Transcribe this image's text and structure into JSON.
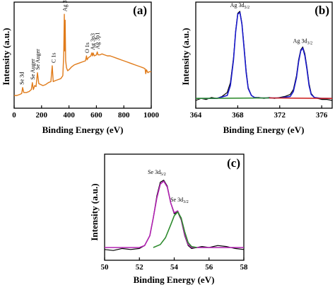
{
  "chart_data": [
    {
      "id": "a",
      "type": "line",
      "panel_label": "(a)",
      "xlabel": "Binding Energy (eV)",
      "ylabel": "Intensity (a.u.)",
      "xlim": [
        0,
        1000
      ],
      "ylim": [
        0,
        1
      ],
      "xticks": [
        0,
        200,
        400,
        600,
        800,
        1000
      ],
      "xtick_labels": [
        "0",
        "200",
        "400",
        "600",
        "800",
        "1000"
      ],
      "yticks_shown": false,
      "grid": false,
      "colors": {
        "line": "#e07b1a"
      },
      "series": [
        {
          "x": [
            0,
            20,
            40,
            55,
            62,
            70,
            90,
            110,
            125,
            133,
            140,
            150,
            160,
            170,
            180,
            195,
            210,
            230,
            250,
            268,
            278,
            285,
            300,
            320,
            340,
            355,
            362,
            366,
            368,
            372,
            376,
            382,
            390,
            400,
            420,
            440,
            460,
            480,
            500,
            520,
            528,
            532,
            540,
            560,
            566,
            572,
            576,
            585,
            600,
            606,
            612,
            625,
            640,
            660,
            680,
            700,
            720,
            740,
            760,
            780,
            800,
            820,
            840,
            860,
            880,
            900,
            920,
            940,
            955,
            960,
            965,
            975,
            985,
            1000
          ],
          "y": [
            0.1,
            0.1,
            0.11,
            0.12,
            0.18,
            0.13,
            0.13,
            0.14,
            0.16,
            0.23,
            0.16,
            0.2,
            0.19,
            0.33,
            0.22,
            0.21,
            0.2,
            0.21,
            0.23,
            0.24,
            0.4,
            0.24,
            0.25,
            0.26,
            0.27,
            0.3,
            0.52,
            0.92,
            0.55,
            0.86,
            0.45,
            0.38,
            0.35,
            0.36,
            0.39,
            0.41,
            0.42,
            0.43,
            0.44,
            0.45,
            0.5,
            0.46,
            0.48,
            0.5,
            0.53,
            0.5,
            0.53,
            0.5,
            0.51,
            0.54,
            0.51,
            0.51,
            0.52,
            0.51,
            0.5,
            0.5,
            0.49,
            0.48,
            0.47,
            0.46,
            0.45,
            0.44,
            0.43,
            0.42,
            0.41,
            0.4,
            0.39,
            0.38,
            0.37,
            0.32,
            0.36,
            0.33,
            0.34,
            0.34
          ]
        }
      ],
      "annotations": [
        {
          "text": "Se 3d",
          "x": 55,
          "y": 0.18
        },
        {
          "text": "Se Auger",
          "x": 133,
          "y": 0.23
        },
        {
          "text": "Se Auger",
          "x": 170,
          "y": 0.33
        },
        {
          "text": "C 1s",
          "x": 285,
          "y": 0.4
        },
        {
          "text": "Ag 3d",
          "x": 368,
          "y": 0.92
        },
        {
          "text": "O 1s",
          "x": 532,
          "y": 0.5
        },
        {
          "text": "Ag 3p3",
          "x": 572,
          "y": 0.53
        },
        {
          "text": "Ag 3p1",
          "x": 606,
          "y": 0.54
        }
      ]
    },
    {
      "id": "b",
      "type": "line",
      "panel_label": "(b)",
      "xlabel": "Binding Energy (eV)",
      "ylabel": "Intensity (a.u.)",
      "xlim": [
        364,
        377
      ],
      "ylim": [
        0,
        1
      ],
      "xticks": [
        364,
        368,
        372,
        376
      ],
      "xtick_labels": [
        "364",
        "368",
        "372",
        "376"
      ],
      "yticks_shown": false,
      "grid": false,
      "colors": {
        "raw": "#000000",
        "fit": "#1a1acc",
        "peak1": "#2e8b2e",
        "peak2": "#cc2222"
      },
      "series": [
        {
          "role": "raw",
          "x": [
            364,
            364.5,
            365,
            365.5,
            366,
            366.5,
            367,
            367.3,
            367.6,
            367.8,
            368,
            368.2,
            368.4,
            368.6,
            368.8,
            369.0,
            369.3,
            369.6,
            370,
            370.5,
            371,
            371.5,
            372,
            372.5,
            373,
            373.3,
            373.6,
            373.8,
            374,
            374.2,
            374.4,
            374.6,
            374.8,
            375.0,
            375.3,
            375.6,
            376,
            376.5,
            377
          ],
          "y": [
            0.05,
            0.07,
            0.06,
            0.08,
            0.07,
            0.09,
            0.13,
            0.23,
            0.48,
            0.75,
            0.93,
            0.95,
            0.83,
            0.6,
            0.35,
            0.18,
            0.1,
            0.08,
            0.08,
            0.07,
            0.08,
            0.07,
            0.08,
            0.09,
            0.11,
            0.16,
            0.3,
            0.46,
            0.56,
            0.59,
            0.52,
            0.38,
            0.22,
            0.12,
            0.08,
            0.07,
            0.06,
            0.06,
            0.05
          ]
        },
        {
          "role": "fit",
          "x": [
            364,
            366,
            367,
            367.3,
            367.6,
            367.8,
            368,
            368.2,
            368.4,
            368.6,
            368.8,
            369.0,
            369.3,
            369.6,
            370,
            372,
            373,
            373.3,
            373.6,
            373.8,
            374,
            374.2,
            374.4,
            374.6,
            374.8,
            375.0,
            375.3,
            376,
            377
          ],
          "y": [
            0.07,
            0.07,
            0.1,
            0.2,
            0.46,
            0.74,
            0.92,
            0.94,
            0.82,
            0.58,
            0.33,
            0.17,
            0.1,
            0.08,
            0.075,
            0.075,
            0.09,
            0.14,
            0.28,
            0.44,
            0.55,
            0.58,
            0.5,
            0.36,
            0.2,
            0.11,
            0.08,
            0.07,
            0.07
          ]
        },
        {
          "role": "baseline-left",
          "x": [
            364,
            371
          ],
          "y": [
            0.07,
            0.075
          ]
        },
        {
          "role": "baseline-right",
          "x": [
            371,
            377
          ],
          "y": [
            0.075,
            0.07
          ]
        }
      ],
      "annotations": [
        {
          "text": "Ag 3d",
          "sub": "5/2",
          "x": 368.2,
          "y": 0.95
        },
        {
          "text": "Ag 3d",
          "sub": "3/2",
          "x": 374.2,
          "y": 0.59
        }
      ]
    },
    {
      "id": "c",
      "type": "line",
      "panel_label": "(c)",
      "xlabel": "Binding Energy (eV)",
      "ylabel": "Intensity (a.u.)",
      "xlim": [
        50,
        58
      ],
      "ylim": [
        0,
        1
      ],
      "xticks": [
        50,
        52,
        54,
        56,
        58
      ],
      "xtick_labels": [
        "50",
        "52",
        "54",
        "56",
        "58"
      ],
      "yticks_shown": false,
      "grid": false,
      "colors": {
        "raw": "#000000",
        "peak1": "#b020b0",
        "peak2": "#2e8b2e",
        "fit": "#b020b0"
      },
      "series": [
        {
          "role": "raw",
          "x": [
            50,
            50.5,
            51,
            51.5,
            52,
            52.3,
            52.6,
            52.8,
            53,
            53.2,
            53.4,
            53.6,
            53.8,
            54,
            54.2,
            54.4,
            54.6,
            54.8,
            55,
            55.3,
            55.6,
            56,
            56.5,
            57,
            57.5,
            58
          ],
          "y": [
            0.08,
            0.07,
            0.09,
            0.08,
            0.09,
            0.12,
            0.22,
            0.4,
            0.62,
            0.76,
            0.78,
            0.72,
            0.55,
            0.44,
            0.46,
            0.38,
            0.22,
            0.12,
            0.09,
            0.1,
            0.11,
            0.1,
            0.12,
            0.11,
            0.09,
            0.08
          ]
        },
        {
          "role": "fit",
          "x": [
            50,
            52,
            52.3,
            52.6,
            52.8,
            53,
            53.2,
            53.4,
            53.6,
            53.8,
            54,
            54.2,
            54.4,
            54.6,
            54.8,
            55,
            56,
            58
          ],
          "y": [
            0.1,
            0.1,
            0.12,
            0.22,
            0.4,
            0.6,
            0.74,
            0.77,
            0.71,
            0.55,
            0.45,
            0.47,
            0.39,
            0.23,
            0.13,
            0.1,
            0.1,
            0.1
          ]
        },
        {
          "role": "component-2",
          "x": [
            52.8,
            53.2,
            53.5,
            53.8,
            54.0,
            54.2,
            54.4,
            54.6,
            54.8,
            55.0,
            55.3
          ],
          "y": [
            0.1,
            0.13,
            0.2,
            0.33,
            0.42,
            0.46,
            0.4,
            0.26,
            0.15,
            0.11,
            0.1
          ]
        }
      ],
      "annotations": [
        {
          "text": "Se 3d",
          "sub": "5/2",
          "x": 53.0,
          "y": 0.8
        },
        {
          "text": "Se 3d",
          "sub": "3/2",
          "x": 54.3,
          "y": 0.52
        }
      ]
    }
  ]
}
